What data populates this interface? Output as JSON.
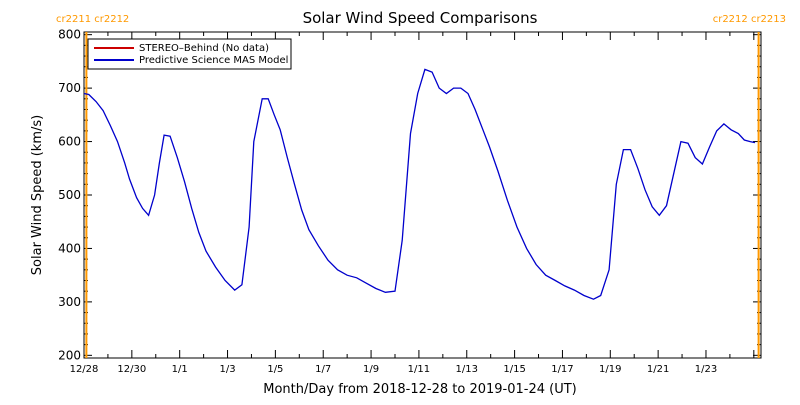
{
  "chart_data": {
    "type": "line",
    "title": "Solar Wind Speed Comparisons",
    "xlabel": "Month/Day from 2018-12-28 to 2019-01-24 (UT)",
    "ylabel": "Solar Wind Speed (km/s)",
    "ylim": [
      195,
      805
    ],
    "xlim": [
      0,
      28.3
    ],
    "y_ticks": [
      200,
      300,
      400,
      500,
      600,
      700,
      800
    ],
    "x_ticks": [
      {
        "day": 0,
        "label": "12/28"
      },
      {
        "day": 2,
        "label": "12/30"
      },
      {
        "day": 4,
        "label": "1/1"
      },
      {
        "day": 6,
        "label": "1/3"
      },
      {
        "day": 8,
        "label": "1/5"
      },
      {
        "day": 10,
        "label": "1/7"
      },
      {
        "day": 12,
        "label": "1/9"
      },
      {
        "day": 14,
        "label": "1/11"
      },
      {
        "day": 16,
        "label": "1/13"
      },
      {
        "day": 18,
        "label": "1/15"
      },
      {
        "day": 20,
        "label": "1/17"
      },
      {
        "day": 22,
        "label": "1/19"
      },
      {
        "day": 24,
        "label": "1/21"
      },
      {
        "day": 26,
        "label": "1/23"
      }
    ],
    "carrington_markers": [
      {
        "day": 0.1,
        "label": "cr2211 cr2212",
        "color": "#ff9900"
      },
      {
        "day": 28.2,
        "label": "cr2212 cr2213",
        "color": "#ff9900"
      }
    ],
    "legend": {
      "placement": "top-left",
      "entries": [
        {
          "name": "STEREO–Behind (No data)",
          "color": "#cc0000"
        },
        {
          "name": "Predictive Science MAS Model",
          "color": "#0000cc"
        }
      ]
    },
    "grid": false,
    "series": [
      {
        "name": "Predictive Science MAS Model",
        "color": "#0000cc",
        "x": [
          0,
          0.2,
          0.5,
          0.8,
          1.1,
          1.4,
          1.7,
          1.9,
          2.2,
          2.45,
          2.7,
          2.95,
          3.15,
          3.35,
          3.6,
          3.9,
          4.2,
          4.5,
          4.8,
          5.1,
          5.5,
          5.9,
          6.3,
          6.6,
          6.9,
          7.1,
          7.45,
          7.7,
          7.95,
          8.2,
          8.5,
          8.8,
          9.1,
          9.4,
          9.8,
          10.2,
          10.6,
          11.0,
          11.4,
          11.8,
          12.2,
          12.6,
          13.0,
          13.3,
          13.65,
          13.95,
          14.25,
          14.55,
          14.85,
          15.15,
          15.45,
          15.75,
          16.05,
          16.35,
          16.65,
          16.95,
          17.3,
          17.7,
          18.1,
          18.5,
          18.9,
          19.3,
          19.7,
          20.1,
          20.5,
          20.9,
          21.3,
          21.6,
          21.95,
          22.25,
          22.55,
          22.85,
          23.15,
          23.45,
          23.75,
          24.05,
          24.35,
          24.7,
          24.95,
          25.25,
          25.55,
          25.85,
          26.15,
          26.45,
          26.75,
          27.05,
          27.35,
          27.6,
          27.85,
          28.05
        ],
        "values": [
          690,
          688,
          675,
          658,
          630,
          600,
          560,
          530,
          495,
          475,
          462,
          500,
          560,
          612,
          610,
          570,
          525,
          475,
          430,
          395,
          365,
          340,
          322,
          332,
          440,
          600,
          680,
          680,
          650,
          622,
          570,
          520,
          472,
          435,
          405,
          378,
          360,
          350,
          345,
          335,
          325,
          318,
          320,
          415,
          615,
          690,
          735,
          730,
          700,
          690,
          700,
          700,
          690,
          660,
          625,
          590,
          545,
          490,
          440,
          400,
          370,
          350,
          340,
          330,
          322,
          312,
          305,
          312,
          360,
          520,
          585,
          585,
          550,
          510,
          478,
          462,
          480,
          550,
          600,
          597,
          570,
          558,
          590,
          620,
          633,
          622,
          615,
          603,
          600,
          598
        ]
      }
    ]
  }
}
